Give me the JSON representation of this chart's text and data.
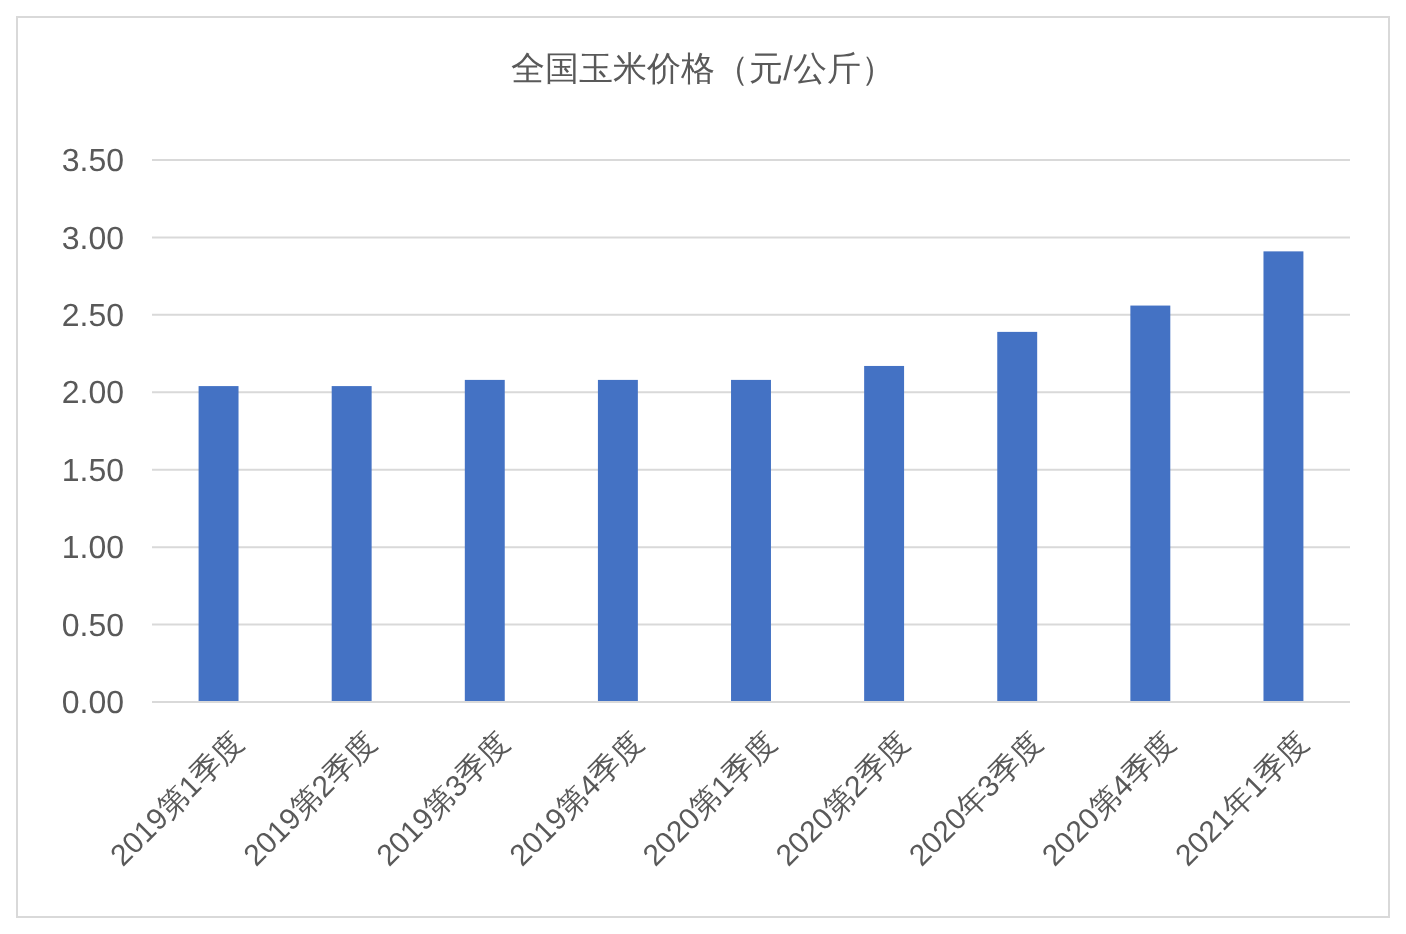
{
  "chart_data": {
    "type": "bar",
    "title": "全国玉米价格（元/公斤）",
    "categories": [
      "2019第1季度",
      "2019第2季度",
      "2019第3季度",
      "2019第4季度",
      "2020第1季度",
      "2020第2季度",
      "2020年3季度",
      "2020第4季度",
      "2021年1季度"
    ],
    "values": [
      2.04,
      2.04,
      2.08,
      2.08,
      2.08,
      2.17,
      2.39,
      2.56,
      2.91
    ],
    "color": "#4472c4",
    "ylim": [
      0,
      3.5
    ],
    "yticks": [
      {
        "value": 0,
        "label": "0.00"
      },
      {
        "value": 0.5,
        "label": "0.50"
      },
      {
        "value": 1,
        "label": "1.00"
      },
      {
        "value": 1.5,
        "label": "1.50"
      },
      {
        "value": 2,
        "label": "2.00"
      },
      {
        "value": 2.5,
        "label": "2.50"
      },
      {
        "value": 3,
        "label": "3.00"
      },
      {
        "value": 3.5,
        "label": "3.50"
      }
    ],
    "grid": "y"
  }
}
